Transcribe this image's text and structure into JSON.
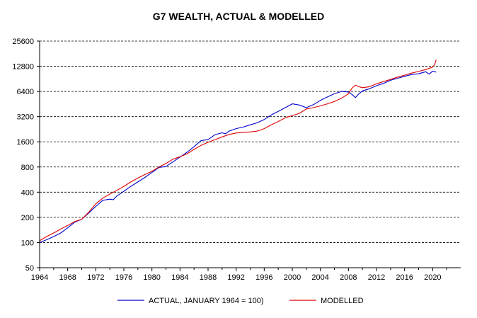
{
  "chart_data": {
    "type": "line",
    "title": "G7 WEALTH, ACTUAL & MODELLED",
    "xlabel": "",
    "ylabel": "",
    "y_scale": "log2",
    "ylim": [
      50,
      25600
    ],
    "xlim": [
      1964,
      2024
    ],
    "y_ticks": [
      "25600",
      "12800",
      "6400",
      "3200",
      "1600",
      "800",
      "400",
      "200",
      "100",
      "50"
    ],
    "y_tick_values": [
      25600,
      12800,
      6400,
      3200,
      1600,
      800,
      400,
      200,
      100,
      50
    ],
    "x_ticks": [
      "1964",
      "1968",
      "1972",
      "1976",
      "1980",
      "1984",
      "1988",
      "1992",
      "1996",
      "2000",
      "2004",
      "2008",
      "2012",
      "2016",
      "2020"
    ],
    "x_tick_values": [
      1964,
      1968,
      1972,
      1976,
      1980,
      1984,
      1988,
      1992,
      1996,
      2000,
      2004,
      2008,
      2012,
      2016,
      2020
    ],
    "grid": "horizontal-dashed",
    "legend_position": "bottom",
    "series": [
      {
        "name": "ACTUAL, JANUARY 1964 = 100)",
        "color": "#0000cc",
        "x": [
          1964.0,
          1965,
          1966,
          1967,
          1968,
          1969,
          1970,
          1971,
          1972,
          1973,
          1974,
          1974.5,
          1975,
          1976,
          1977,
          1978,
          1979,
          1980,
          1981,
          1982,
          1983,
          1984,
          1985,
          1986,
          1987,
          1988,
          1989,
          1990,
          1990.5,
          1991,
          1992,
          1993,
          1994,
          1995,
          1996,
          1997,
          1998,
          1999,
          2000,
          2001,
          2002,
          2003,
          2004,
          2005,
          2006,
          2007,
          2008,
          2008.5,
          2009,
          2009.5,
          2010,
          2011,
          2012,
          2013,
          2014,
          2015,
          2016,
          2017,
          2018,
          2019,
          2019.5,
          2020,
          2020.5
        ],
        "values": [
          100,
          108,
          118,
          130,
          150,
          175,
          190,
          225,
          270,
          320,
          330,
          325,
          360,
          410,
          470,
          530,
          600,
          690,
          790,
          810,
          920,
          1050,
          1200,
          1400,
          1650,
          1700,
          1950,
          2050,
          2000,
          2150,
          2300,
          2400,
          2550,
          2700,
          2950,
          3350,
          3700,
          4100,
          4550,
          4400,
          4100,
          4450,
          5000,
          5500,
          6000,
          6400,
          6300,
          5900,
          5400,
          6000,
          6500,
          6900,
          7500,
          8000,
          8700,
          9200,
          9700,
          10200,
          10400,
          11000,
          10300,
          11200,
          10900
        ]
      },
      {
        "name": "MODELLED",
        "color": "#dd0000",
        "x": [
          1964.0,
          1965,
          1966,
          1967,
          1968,
          1969,
          1970,
          1971,
          1972,
          1973,
          1974,
          1975,
          1976,
          1977,
          1978,
          1979,
          1980,
          1981,
          1982,
          1983,
          1984,
          1985,
          1986,
          1987,
          1988,
          1989,
          1990,
          1991,
          1992,
          1993,
          1994,
          1995,
          1996,
          1997,
          1998,
          1999,
          2000,
          2001,
          2002,
          2003,
          2004,
          2005,
          2006,
          2007,
          2008,
          2008.5,
          2009,
          2009.5,
          2010,
          2011,
          2012,
          2013,
          2014,
          2015,
          2016,
          2017,
          2018,
          2019,
          2020,
          2020.3,
          2020.5
        ],
        "values": [
          105,
          118,
          130,
          145,
          160,
          178,
          190,
          230,
          290,
          340,
          380,
          420,
          470,
          530,
          590,
          650,
          710,
          800,
          880,
          990,
          1060,
          1150,
          1300,
          1450,
          1580,
          1700,
          1830,
          1960,
          2040,
          2080,
          2100,
          2150,
          2300,
          2550,
          2800,
          3100,
          3300,
          3500,
          3950,
          4100,
          4300,
          4550,
          4850,
          5300,
          6000,
          7000,
          7600,
          7300,
          7100,
          7300,
          7900,
          8400,
          8900,
          9500,
          10000,
          10600,
          11100,
          11700,
          12500,
          13500,
          15300
        ]
      }
    ]
  }
}
